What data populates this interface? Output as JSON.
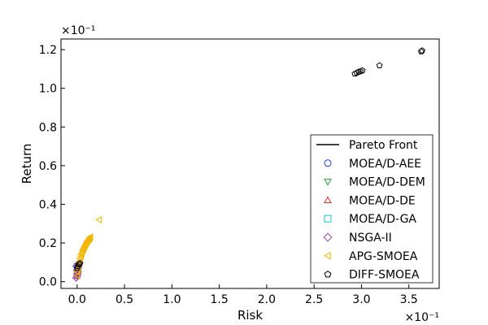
{
  "chart_data": {
    "type": "scatter",
    "xlabel": "Risk",
    "ylabel": "Return",
    "x_multiplier": "×10⁻¹",
    "y_multiplier": "×10⁻¹",
    "xlim": [
      -0.17,
      3.82
    ],
    "ylim": [
      -0.035,
      1.255
    ],
    "xticks": [
      0.0,
      0.5,
      1.0,
      1.5,
      2.0,
      2.5,
      3.0,
      3.5
    ],
    "xtick_labels": [
      "0.0",
      "0.5",
      "1.0",
      "1.5",
      "2.0",
      "2.5",
      "3.0",
      "3.5"
    ],
    "yticks": [
      0.0,
      0.2,
      0.4,
      0.6,
      0.8,
      1.0,
      1.2
    ],
    "ytick_labels": [
      "0.0",
      "0.2",
      "0.4",
      "0.6",
      "0.8",
      "1.0",
      "1.2"
    ],
    "grid": false,
    "legend_position": "lower-right",
    "series": [
      {
        "name": "Pareto Front",
        "marker": "line",
        "color": "#000000",
        "x": [
          0.0,
          0.02,
          0.04,
          0.06
        ],
        "y": [
          0.02,
          0.05,
          0.08,
          0.1
        ]
      },
      {
        "name": "MOEA/D-AEE",
        "marker": "circle",
        "color": "#1f3fd1",
        "x": [
          0.0,
          0.01,
          0.0,
          0.02,
          0.01,
          0.0
        ],
        "y": [
          0.03,
          0.05,
          0.07,
          0.08,
          0.09,
          0.06
        ]
      },
      {
        "name": "MOEA/D-DEM",
        "marker": "triangle-down",
        "color": "#2ca02c",
        "x": [
          0.0,
          0.01,
          0.02,
          0.0
        ],
        "y": [
          0.04,
          0.06,
          0.08,
          0.05
        ]
      },
      {
        "name": "MOEA/D-DE",
        "marker": "triangle-up",
        "color": "#d62728",
        "x": [
          0.0,
          0.01,
          0.0,
          0.02
        ],
        "y": [
          0.03,
          0.05,
          0.07,
          0.09
        ]
      },
      {
        "name": "MOEA/D-GA",
        "marker": "square",
        "color": "#17becf",
        "x": [
          0.0,
          0.01,
          0.0
        ],
        "y": [
          0.04,
          0.06,
          0.08
        ]
      },
      {
        "name": "NSGA-II",
        "marker": "diamond",
        "color": "#9b3fb5",
        "x": [
          -0.01,
          0.0,
          0.01,
          0.0,
          0.01,
          -0.01,
          0.0,
          0.02
        ],
        "y": [
          0.02,
          0.03,
          0.05,
          0.06,
          0.07,
          0.08,
          0.04,
          0.09
        ]
      },
      {
        "name": "APG-SMOEA",
        "marker": "triangle-left",
        "color": "#f2b500",
        "x": [
          0.0,
          0.0,
          0.01,
          0.01,
          0.02,
          0.02,
          0.03,
          0.03,
          0.04,
          0.04,
          0.05,
          0.05,
          0.06,
          0.06,
          0.07,
          0.07,
          0.08,
          0.08,
          0.09,
          0.09,
          0.1,
          0.1,
          0.11,
          0.11,
          0.12,
          0.12,
          0.13,
          0.13,
          0.14,
          0.14,
          0.23
        ],
        "y": [
          0.03,
          0.05,
          0.06,
          0.08,
          0.09,
          0.1,
          0.11,
          0.12,
          0.13,
          0.14,
          0.145,
          0.15,
          0.16,
          0.165,
          0.17,
          0.175,
          0.18,
          0.185,
          0.19,
          0.195,
          0.2,
          0.205,
          0.21,
          0.212,
          0.215,
          0.218,
          0.22,
          0.225,
          0.228,
          0.232,
          0.32
        ]
      },
      {
        "name": "DIFF-SMOEA",
        "marker": "pentagon",
        "color": "#000000",
        "x": [
          0.0,
          0.01,
          0.02,
          0.03,
          2.93,
          2.95,
          2.97,
          2.99,
          3.01,
          3.19,
          3.63,
          3.64
        ],
        "y": [
          0.07,
          0.08,
          0.09,
          0.095,
          1.075,
          1.08,
          1.085,
          1.088,
          1.092,
          1.118,
          1.19,
          1.195
        ]
      }
    ]
  }
}
